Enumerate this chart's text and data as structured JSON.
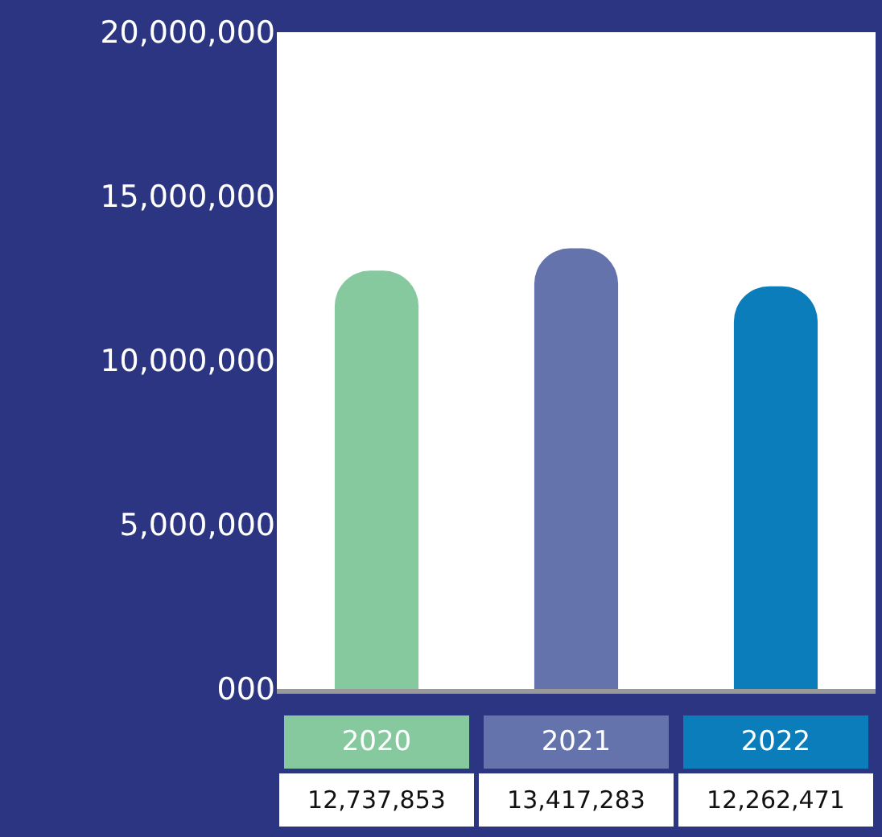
{
  "chart_data": {
    "type": "bar",
    "categories": [
      "2020",
      "2021",
      "2022"
    ],
    "values": [
      12737853,
      13417283,
      12262471
    ],
    "colors": [
      "#86c99f",
      "#6473ab",
      "#0b7dba"
    ],
    "ylim": [
      0,
      20000000
    ],
    "yticks": [
      {
        "value": 0,
        "label": "000"
      },
      {
        "value": 5000000,
        "label": "5,000,000"
      },
      {
        "value": 10000000,
        "label": "10,000,000"
      },
      {
        "value": 15000000,
        "label": "15,000,000"
      },
      {
        "value": 20000000,
        "label": "20,000,000"
      }
    ],
    "value_labels": [
      "12,737,853",
      "13,417,283",
      "12,262,471"
    ],
    "grid": false,
    "legend": false
  }
}
